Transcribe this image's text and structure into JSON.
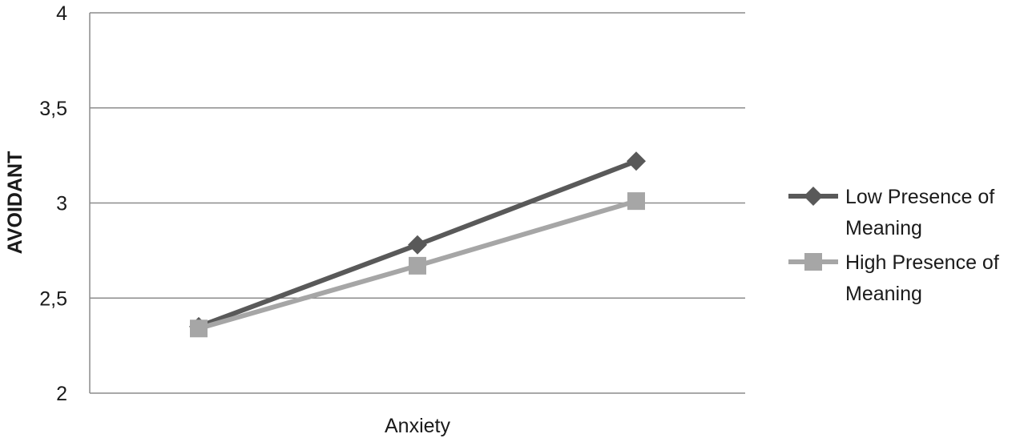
{
  "chart_data": {
    "type": "line",
    "title": "",
    "xlabel": "Anxiety",
    "ylabel": "AVOIDANT",
    "ylim": [
      2,
      4
    ],
    "yticks": [
      "2",
      "2,5",
      "3",
      "3,5",
      "4"
    ],
    "grid": true,
    "legend_position": "right",
    "x": [
      1,
      2,
      3
    ],
    "series": [
      {
        "name_lines": [
          "Low Presence of",
          "Meaning"
        ],
        "values": [
          2.35,
          2.78,
          3.22
        ],
        "marker": "diamond",
        "color": "#595959"
      },
      {
        "name_lines": [
          "High Presence of",
          "Meaning"
        ],
        "values": [
          2.34,
          2.67,
          3.01
        ],
        "marker": "square",
        "color": "#a6a6a6"
      }
    ]
  }
}
